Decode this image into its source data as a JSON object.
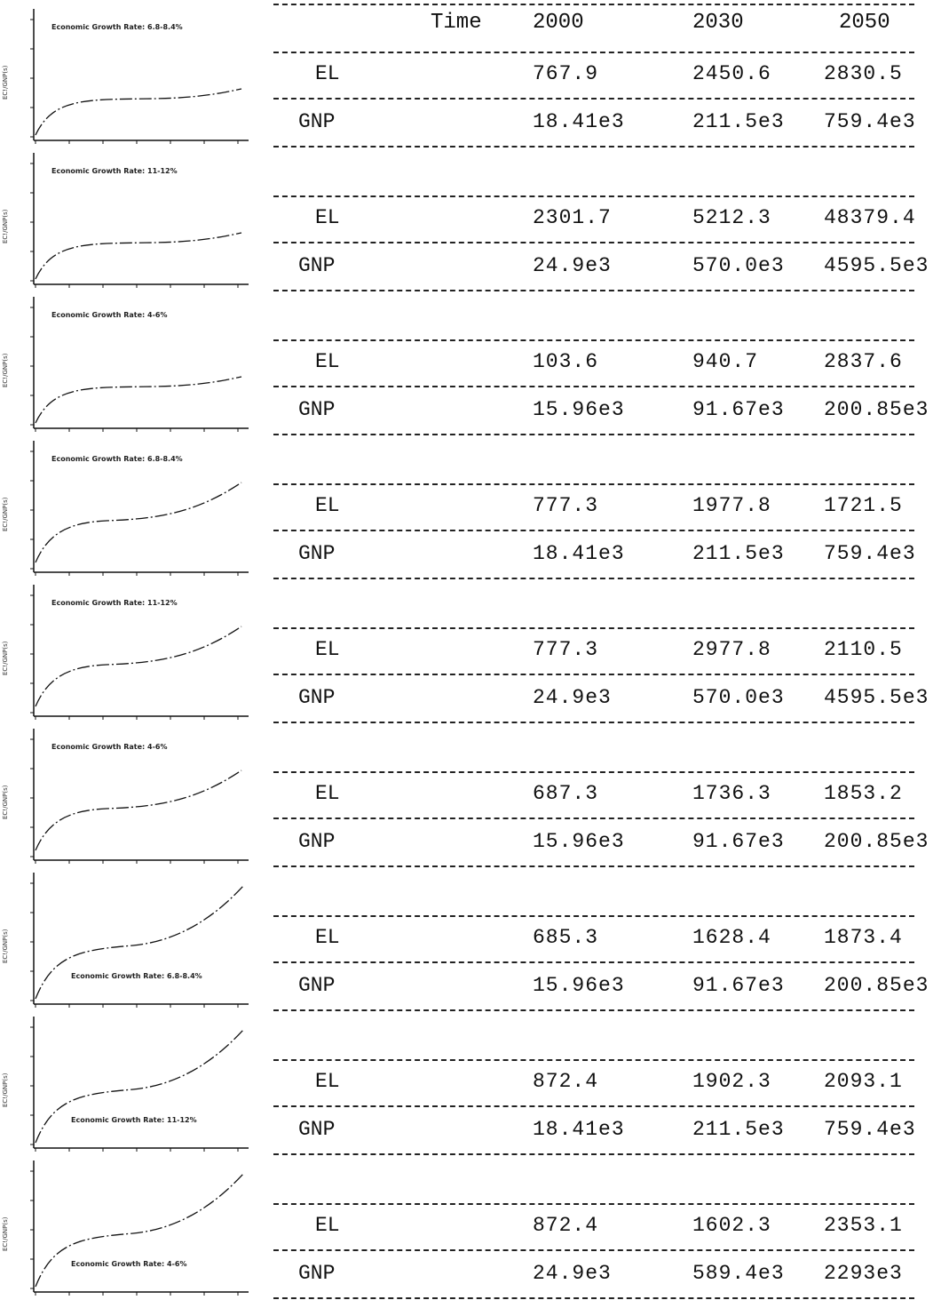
{
  "header": {
    "time": "Time",
    "years": [
      "2000",
      "2030",
      "2050"
    ]
  },
  "rows": [
    {
      "chart": {
        "title": "Economic Growth Rate: 6.8-8.4%",
        "ylabel": "EC!/GNP(s)"
      },
      "el": {
        "label": "EL",
        "v2000": "767.9",
        "v2030": "2450.6",
        "v2050": "2830.5"
      },
      "gnp": {
        "label": "GNP",
        "v2000": "18.41e3",
        "v2030": "211.5e3",
        "v2050": "759.4e3"
      }
    },
    {
      "chart": {
        "title": "Economic Growth Rate: 11-12%",
        "ylabel": "EC!/GNP(s)"
      },
      "el": {
        "label": "EL",
        "v2000": "2301.7",
        "v2030": "5212.3",
        "v2050": "48379.4"
      },
      "gnp": {
        "label": "GNP",
        "v2000": "24.9e3",
        "v2030": "570.0e3",
        "v2050": "4595.5e3"
      }
    },
    {
      "chart": {
        "title": "Economic Growth Rate: 4-6%",
        "ylabel": "EC!/GNP(s)"
      },
      "el": {
        "label": "EL",
        "v2000": "103.6",
        "v2030": "940.7",
        "v2050": "2837.6"
      },
      "gnp": {
        "label": "GNP",
        "v2000": "15.96e3",
        "v2030": "91.67e3",
        "v2050": "200.85e3"
      }
    },
    {
      "chart": {
        "title": "Economic Growth Rate: 6.8-8.4%",
        "ylabel": "EC!/GNP(s)"
      },
      "el": {
        "label": "EL",
        "v2000": "777.3",
        "v2030": "1977.8",
        "v2050": "1721.5"
      },
      "gnp": {
        "label": "GNP",
        "v2000": "18.41e3",
        "v2030": "211.5e3",
        "v2050": "759.4e3"
      }
    },
    {
      "chart": {
        "title": "Economic Growth Rate: 11-12%",
        "ylabel": "EC!/GNP(s)"
      },
      "el": {
        "label": "EL",
        "v2000": "777.3",
        "v2030": "2977.8",
        "v2050": "2110.5"
      },
      "gnp": {
        "label": "GNP",
        "v2000": "24.9e3",
        "v2030": "570.0e3",
        "v2050": "4595.5e3"
      }
    },
    {
      "chart": {
        "title": "Economic Growth Rate: 4-6%",
        "ylabel": "EC!/GNP(s)"
      },
      "el": {
        "label": "EL",
        "v2000": "687.3",
        "v2030": "1736.3",
        "v2050": "1853.2"
      },
      "gnp": {
        "label": "GNP",
        "v2000": "15.96e3",
        "v2030": "91.67e3",
        "v2050": "200.85e3"
      }
    },
    {
      "chart": {
        "title": "Economic Growth Rate: 6.8-8.4%",
        "ylabel": "EC!/GNP(s)"
      },
      "el": {
        "label": "EL",
        "v2000": "685.3",
        "v2030": "1628.4",
        "v2050": "1873.4"
      },
      "gnp": {
        "label": "GNP",
        "v2000": "15.96e3",
        "v2030": "91.67e3",
        "v2050": "200.85e3"
      }
    },
    {
      "chart": {
        "title": "Economic Growth Rate: 11-12%",
        "ylabel": "EC!/GNP(s)"
      },
      "el": {
        "label": "EL",
        "v2000": "872.4",
        "v2030": "1902.3",
        "v2050": "2093.1"
      },
      "gnp": {
        "label": "GNP",
        "v2000": "18.41e3",
        "v2030": "211.5e3",
        "v2050": "759.4e3"
      }
    },
    {
      "chart": {
        "title": "Economic Growth Rate: 4-6%",
        "ylabel": "EC!/GNP(s)"
      },
      "el": {
        "label": "EL",
        "v2000": "872.4",
        "v2030": "1602.3",
        "v2050": "2353.1"
      },
      "gnp": {
        "label": "GNP",
        "v2000": "24.9e3",
        "v2030": "589.4e3",
        "v2050": "2293e3"
      }
    }
  ]
}
